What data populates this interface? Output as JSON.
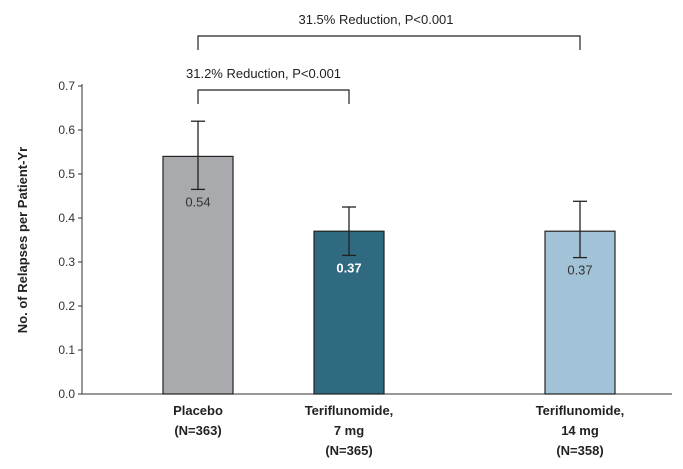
{
  "chart_data": {
    "type": "bar",
    "ylabel": "No. of Relapses per Patient-Yr",
    "ylim": [
      0,
      0.7
    ],
    "yticks": [
      "0.0",
      "0.1",
      "0.2",
      "0.3",
      "0.4",
      "0.5",
      "0.6",
      "0.7"
    ],
    "categories": [
      {
        "lines": [
          "Placebo",
          "(N=363)"
        ]
      },
      {
        "lines": [
          "Teriflunomide,",
          "7 mg",
          "(N=365)"
        ]
      },
      {
        "lines": [
          "Teriflunomide,",
          "14 mg",
          "(N=358)"
        ]
      }
    ],
    "values": [
      0.54,
      0.37,
      0.37
    ],
    "value_labels": [
      "0.54",
      "0.37",
      "0.37"
    ],
    "error_low": [
      0.465,
      0.315,
      0.31
    ],
    "error_high": [
      0.62,
      0.425,
      0.438
    ],
    "colors": [
      "#a9aaad",
      "#2f6a80",
      "#a2c3d7"
    ],
    "value_label_colors": [
      "#333333",
      "#ffffff",
      "#333333"
    ],
    "comparisons": [
      {
        "text": "31.2% Reduction, P<0.001",
        "from": 0,
        "to": 1
      },
      {
        "text": "31.5% Reduction, P<0.001",
        "from": 0,
        "to": 2
      }
    ]
  }
}
